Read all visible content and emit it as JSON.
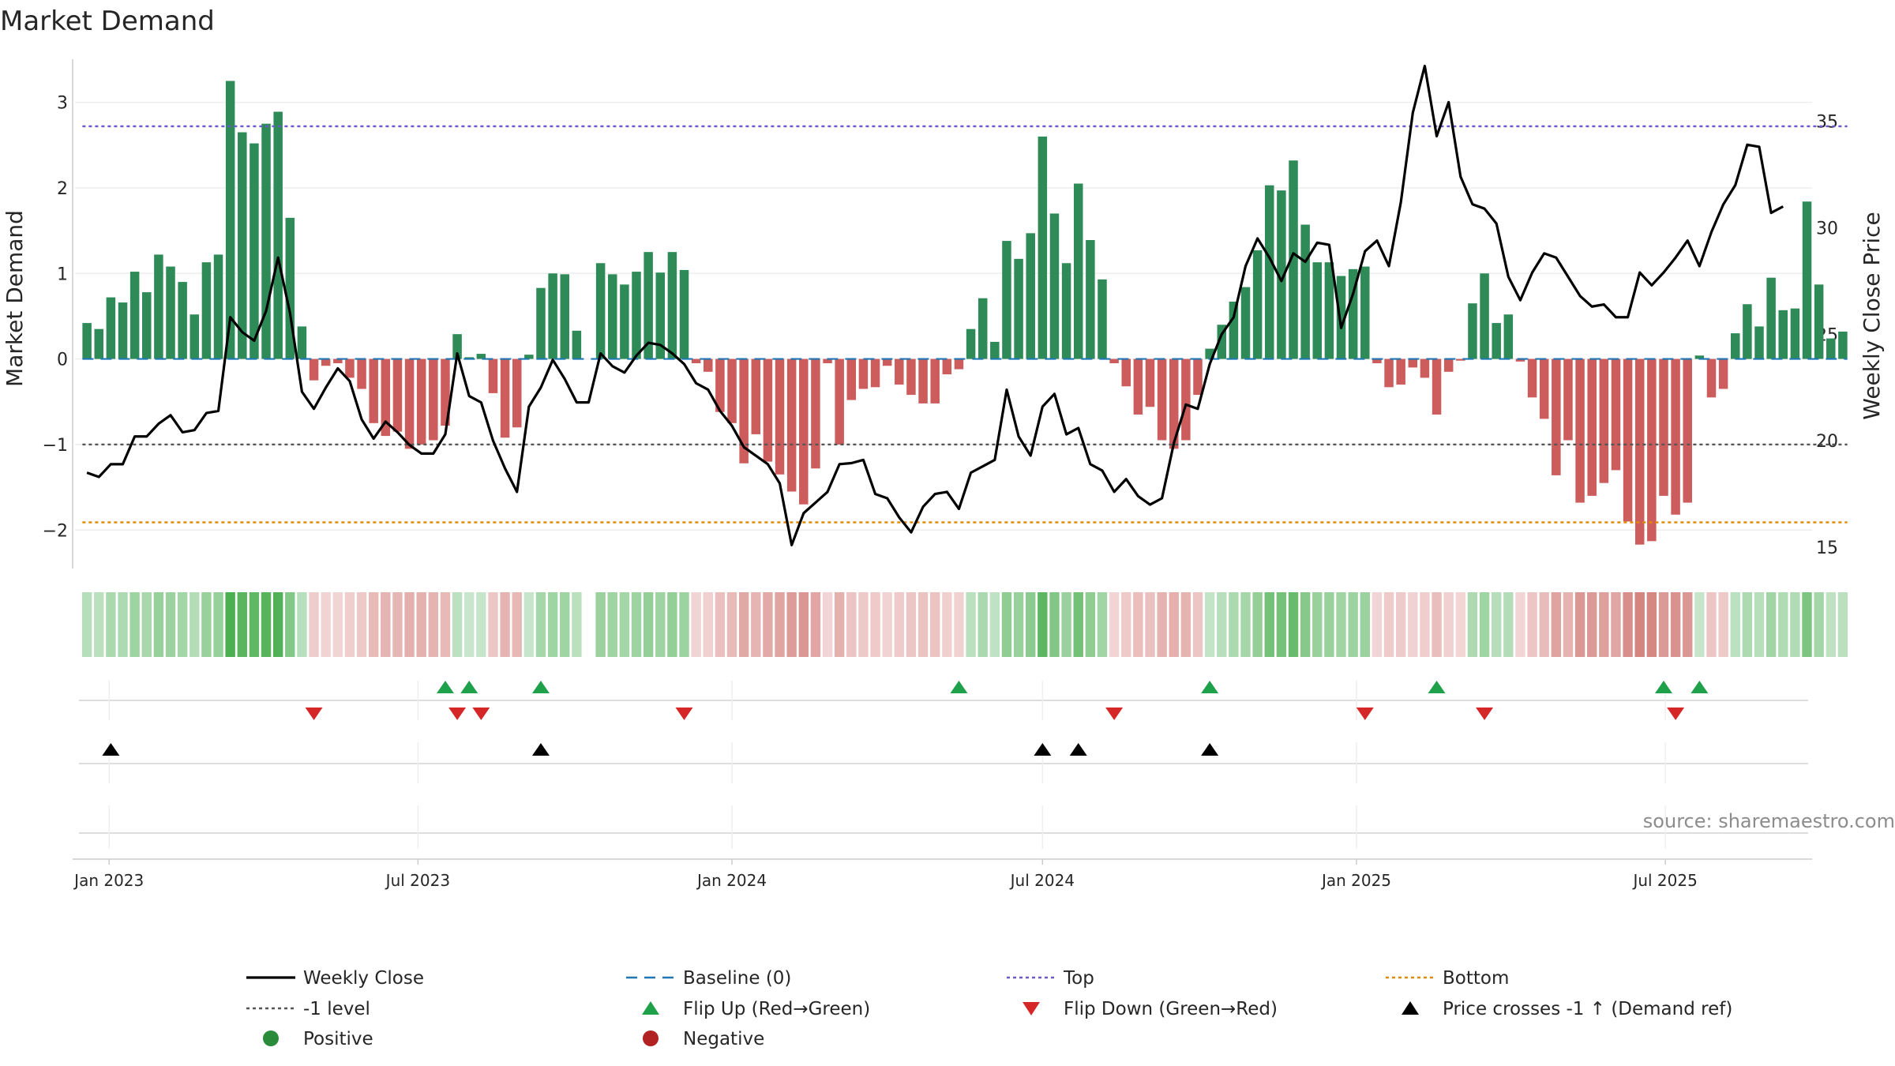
{
  "chart_data": {
    "type": "bar",
    "title": "Market Demand",
    "ylabel": "Market Demand",
    "y2label": "Weekly Close Price",
    "ylim": [
      -2.45,
      3.55
    ],
    "y2lim": [
      14.0,
      38.1
    ],
    "yticks": [
      -2,
      -1,
      0,
      1,
      2,
      3
    ],
    "y2ticks": [
      15,
      20,
      25,
      30,
      35
    ],
    "x_start": "2022-12-12",
    "x_end": "2025-09-25",
    "first_week": "2022-12-19",
    "week_step_days": 7,
    "xticks": [
      {
        "date": "2023-01-01",
        "label": "Jan 2023"
      },
      {
        "date": "2023-07-01",
        "label": "Jul 2023"
      },
      {
        "date": "2024-01-01",
        "label": "Jan 2024"
      },
      {
        "date": "2024-07-01",
        "label": "Jul 2024"
      },
      {
        "date": "2025-01-01",
        "label": "Jan 2025"
      },
      {
        "date": "2025-07-01",
        "label": "Jul 2025"
      }
    ],
    "series": [
      {
        "name": "Market Demand",
        "values": [
          0.42,
          0.35,
          0.72,
          0.66,
          1.02,
          0.78,
          1.22,
          1.08,
          0.9,
          0.52,
          1.13,
          1.22,
          3.25,
          2.65,
          2.52,
          2.75,
          2.89,
          1.65,
          0.38,
          -0.25,
          -0.08,
          -0.05,
          -0.22,
          -0.35,
          -0.75,
          -0.9,
          -0.85,
          -1.05,
          -1.0,
          -0.95,
          -0.78,
          0.29,
          0.02,
          0.06,
          -0.4,
          -0.92,
          -0.8,
          0.05,
          0.83,
          1.0,
          0.99,
          0.33,
          0,
          1.12,
          0.99,
          0.87,
          1.02,
          1.25,
          1.01,
          1.25,
          1.04,
          -0.05,
          -0.15,
          -0.62,
          -0.75,
          -1.22,
          -0.88,
          -1.2,
          -1.35,
          -1.55,
          -1.7,
          -1.28,
          -0.05,
          -1.0,
          -0.48,
          -0.35,
          -0.33,
          -0.08,
          -0.3,
          -0.42,
          -0.52,
          -0.52,
          -0.18,
          -0.12,
          0.35,
          0.71,
          0.2,
          1.38,
          1.17,
          1.47,
          2.6,
          1.7,
          1.12,
          2.05,
          1.39,
          0.93,
          -0.05,
          -0.32,
          -0.65,
          -0.56,
          -0.95,
          -1.05,
          -0.95,
          -0.42,
          0.12,
          0.4,
          0.67,
          0.84,
          1.27,
          2.03,
          1.97,
          2.32,
          1.57,
          1.13,
          1.13,
          0.97,
          1.05,
          1.08,
          -0.05,
          -0.33,
          -0.3,
          -0.1,
          -0.22,
          -0.65,
          -0.15,
          -0.02,
          0.65,
          1.0,
          0.42,
          0.52,
          -0.03,
          -0.45,
          -0.7,
          -1.36,
          -0.95,
          -1.68,
          -1.6,
          -1.45,
          -1.3,
          -1.9,
          -2.17,
          -2.13,
          -1.6,
          -1.82,
          -1.68,
          0.04,
          -0.45,
          -0.35,
          0.3,
          0.64,
          0.38,
          0.95,
          0.57,
          0.59,
          1.84,
          0.87,
          0.24,
          0.32
        ]
      },
      {
        "name": "Weekly Close",
        "values": [
          18.5,
          18.3,
          18.9,
          18.9,
          20.2,
          20.2,
          20.8,
          21.2,
          20.4,
          20.5,
          21.3,
          21.4,
          25.8,
          25.1,
          24.7,
          26.1,
          28.6,
          26.0,
          22.3,
          21.5,
          22.5,
          23.4,
          22.8,
          21.0,
          20.1,
          20.9,
          20.4,
          19.8,
          19.4,
          19.4,
          20.3,
          24.1,
          22.1,
          21.8,
          20.0,
          18.7,
          17.6,
          21.6,
          22.5,
          23.8,
          22.9,
          21.8,
          21.8,
          24.1,
          23.5,
          23.2,
          24.0,
          24.6,
          24.5,
          24.1,
          23.6,
          22.7,
          22.4,
          21.4,
          20.7,
          19.7,
          19.3,
          18.9,
          18.0,
          15.1,
          16.6,
          17.1,
          17.6,
          18.9,
          18.95,
          19.1,
          17.5,
          17.3,
          16.4,
          15.7,
          16.9,
          17.5,
          17.6,
          16.8,
          18.5,
          18.8,
          19.1,
          22.4,
          20.2,
          19.3,
          21.6,
          22.2,
          20.3,
          20.6,
          18.9,
          18.6,
          17.6,
          18.2,
          17.4,
          17.0,
          17.3,
          19.9,
          21.7,
          21.5,
          23.6,
          25.0,
          25.8,
          28.2,
          29.5,
          28.6,
          27.5,
          28.8,
          28.4,
          29.3,
          29.2,
          25.3,
          26.9,
          28.9,
          29.4,
          28.2,
          31.2,
          35.4,
          37.6,
          34.3,
          35.9,
          32.4,
          31.1,
          30.9,
          30.2,
          27.7,
          26.6,
          27.9,
          28.8,
          28.6,
          27.7,
          26.8,
          26.3,
          26.4,
          25.8,
          25.8,
          27.9,
          27.3,
          27.9,
          28.6,
          29.4,
          28.2,
          29.8,
          31.1,
          32.0,
          33.9,
          33.8,
          30.7,
          31.0
        ]
      },
      {
        "name": "Baseline (0)",
        "values": [
          0
        ]
      },
      {
        "name": "Top",
        "values": [
          2.72
        ]
      },
      {
        "name": "-1 level",
        "values": [
          -1.0
        ]
      },
      {
        "name": "Bottom",
        "values": [
          -1.91
        ]
      }
    ],
    "signals": {
      "flip_up_weeks": [
        30,
        32,
        38,
        73,
        94,
        113,
        132,
        135
      ],
      "flip_down_weeks": [
        19,
        31,
        33,
        50,
        86,
        107,
        117,
        133
      ],
      "price_cross_weeks": [
        2,
        38,
        80,
        83,
        94
      ]
    },
    "legend": {
      "position": "bottom",
      "items": [
        {
          "label": "Weekly Close",
          "style": "solid-line",
          "color": "#000000"
        },
        {
          "label": "Baseline (0)",
          "style": "dashed-line",
          "color": "#1f77b4"
        },
        {
          "label": "Top",
          "style": "dotted-line",
          "color": "#6a5acd"
        },
        {
          "label": "Bottom",
          "style": "dotted-line",
          "color": "#e08a00"
        },
        {
          "label": "-1 level",
          "style": "dotted-line",
          "color": "#555555"
        },
        {
          "label": "Flip Up (Red→Green)",
          "style": "triangle-up",
          "color": "#1fa04b"
        },
        {
          "label": "Flip Down (Green→Red)",
          "style": "triangle-down",
          "color": "#d62728"
        },
        {
          "label": "Price crosses -1 ↑ (Demand ref)",
          "style": "triangle-up",
          "color": "#000000"
        },
        {
          "label": "Positive",
          "style": "circle",
          "color": "#2a8c3a"
        },
        {
          "label": "Negative",
          "style": "circle",
          "color": "#b22222"
        }
      ]
    },
    "source": "source: sharemaestro.com"
  },
  "colors": {
    "positive_bar": "#2e8b57",
    "negative_bar": "#cd5c5c",
    "price_line": "#000000",
    "baseline": "#1f77b4",
    "top": "#6a5acd",
    "minus_one": "#555555",
    "bottom": "#e08a00",
    "flip_up": "#1fa04b",
    "flip_down": "#d62728",
    "price_cross": "#000000"
  }
}
